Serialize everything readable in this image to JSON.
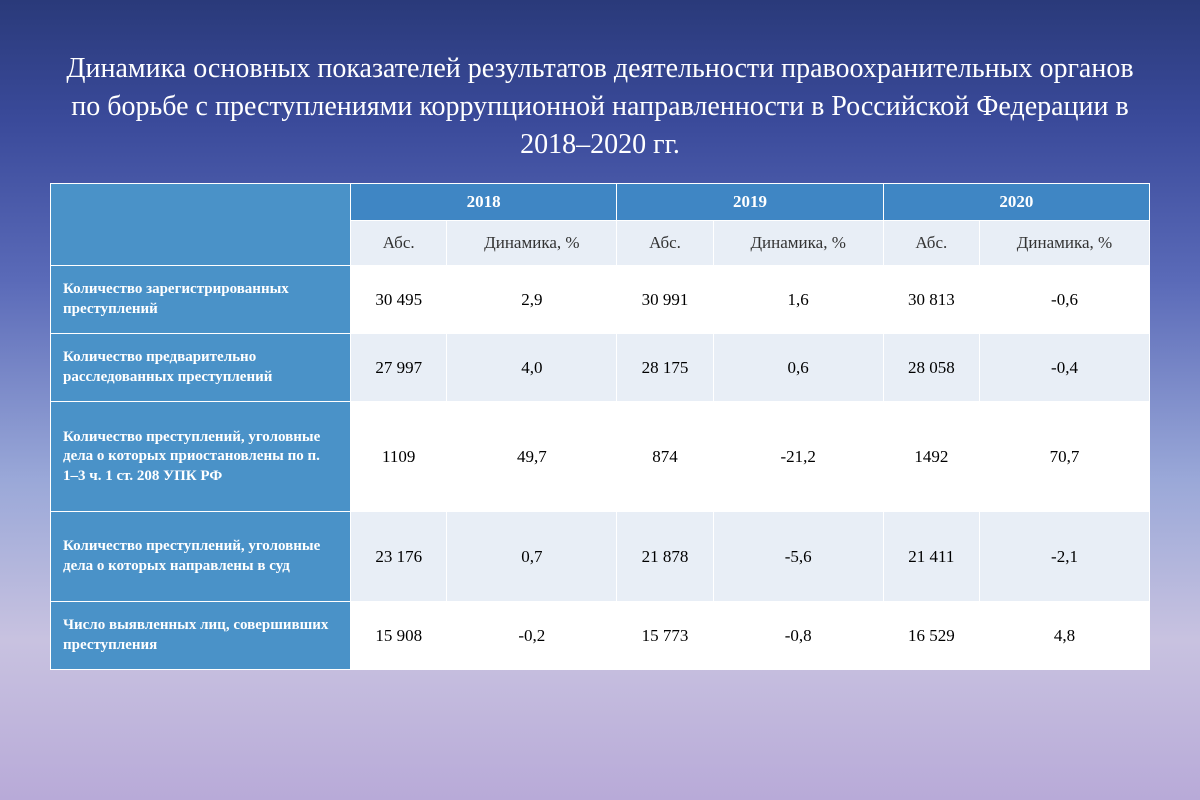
{
  "title": "Динамика основных показателей результатов деятельности правоохранительных органов по борьбе с преступлениями коррупционной направленности в Российской Федерации в 2018–2020 гг.",
  "years": [
    "2018",
    "2019",
    "2020"
  ],
  "subheaders": {
    "abs": "Абс.",
    "dyn": "Динамика, %"
  },
  "rows": [
    {
      "label": "Количество зарегистрированных преступлений",
      "v": [
        "30 495",
        "2,9",
        "30 991",
        "1,6",
        "30 813",
        "-0,6"
      ]
    },
    {
      "label": "Количество предварительно расследованных преступлений",
      "v": [
        "27 997",
        "4,0",
        "28 175",
        "0,6",
        "28 058",
        "-0,4"
      ]
    },
    {
      "label": "Количество преступлений, уголовные дела о которых приостановлены по п. 1–3 ч. 1 ст. 208 УПК РФ",
      "v": [
        "1109",
        "49,7",
        "874",
        "-21,2",
        "1492",
        "70,7"
      ]
    },
    {
      "label": "Количество преступлений, уголовные дела о которых направлены в суд",
      "v": [
        "23 176",
        "0,7",
        "21 878",
        "-5,6",
        "21 411",
        "-2,1"
      ]
    },
    {
      "label": "Число выявленных лиц, совершивших преступления",
      "v": [
        "15 908",
        "-0,2",
        "15 773",
        "-0,8",
        "16 529",
        "4,8"
      ]
    }
  ],
  "colors": {
    "header_bg": "#3f86c4",
    "row_label_bg": "#4a92c8",
    "odd_row_bg": "#ffffff",
    "even_row_bg": "#e8eef6",
    "title_color": "#ffffff",
    "border_color": "#ffffff"
  }
}
